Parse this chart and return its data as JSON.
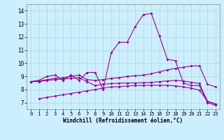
{
  "xlabel": "Windchill (Refroidissement éolien,°C)",
  "background_color": "#cceeff",
  "line_color": "#990099",
  "grid_color": "#aaddcc",
  "xlim": [
    -0.5,
    23.5
  ],
  "ylim": [
    6.5,
    14.5
  ],
  "xticks": [
    0,
    1,
    2,
    3,
    4,
    5,
    6,
    7,
    8,
    9,
    10,
    11,
    12,
    13,
    14,
    15,
    16,
    17,
    18,
    19,
    20,
    21,
    22,
    23
  ],
  "yticks": [
    7,
    8,
    9,
    10,
    11,
    12,
    13,
    14
  ],
  "line1": {
    "x": [
      0,
      1,
      2,
      3,
      4,
      5,
      6,
      7,
      8,
      9,
      10,
      11,
      12,
      13,
      14,
      15,
      16,
      17,
      18,
      19,
      20,
      21,
      22,
      23
    ],
    "y": [
      8.6,
      8.7,
      9.0,
      9.1,
      8.7,
      9.1,
      8.7,
      9.3,
      9.3,
      8.0,
      10.8,
      11.6,
      11.6,
      12.8,
      13.7,
      13.8,
      12.1,
      10.3,
      10.2,
      8.5,
      8.3,
      8.3,
      7.0,
      6.8
    ]
  },
  "line2": {
    "x": [
      0,
      1,
      2,
      3,
      4,
      5,
      6,
      7,
      8,
      9,
      10,
      11,
      12,
      13,
      14,
      15,
      16,
      17,
      18,
      19,
      20,
      21,
      22,
      23
    ],
    "y": [
      8.6,
      8.6,
      8.7,
      8.75,
      8.8,
      8.85,
      8.9,
      8.6,
      8.3,
      8.4,
      8.45,
      8.48,
      8.5,
      8.5,
      8.52,
      8.55,
      8.6,
      8.65,
      8.7,
      8.65,
      8.55,
      8.45,
      7.1,
      6.9
    ]
  },
  "line3": {
    "x": [
      0,
      1,
      2,
      3,
      4,
      5,
      6,
      7,
      8,
      9,
      10,
      11,
      12,
      13,
      14,
      15,
      16,
      17,
      18,
      19,
      20,
      21,
      22,
      23
    ],
    "y": [
      8.6,
      8.65,
      8.75,
      8.85,
      8.9,
      9.0,
      9.1,
      8.75,
      8.7,
      8.75,
      8.85,
      8.9,
      9.0,
      9.05,
      9.1,
      9.2,
      9.35,
      9.5,
      9.6,
      9.7,
      9.8,
      9.8,
      8.4,
      8.2
    ]
  },
  "line4": {
    "x": [
      1,
      2,
      3,
      4,
      5,
      6,
      7,
      8,
      9,
      10,
      11,
      12,
      13,
      14,
      15,
      16,
      17,
      18,
      19,
      20,
      21,
      22,
      23
    ],
    "y": [
      7.3,
      7.4,
      7.5,
      7.6,
      7.7,
      7.8,
      7.9,
      8.0,
      8.1,
      8.2,
      8.22,
      8.27,
      8.3,
      8.32,
      8.33,
      8.33,
      8.32,
      8.28,
      8.2,
      8.1,
      7.95,
      7.1,
      6.9
    ]
  }
}
